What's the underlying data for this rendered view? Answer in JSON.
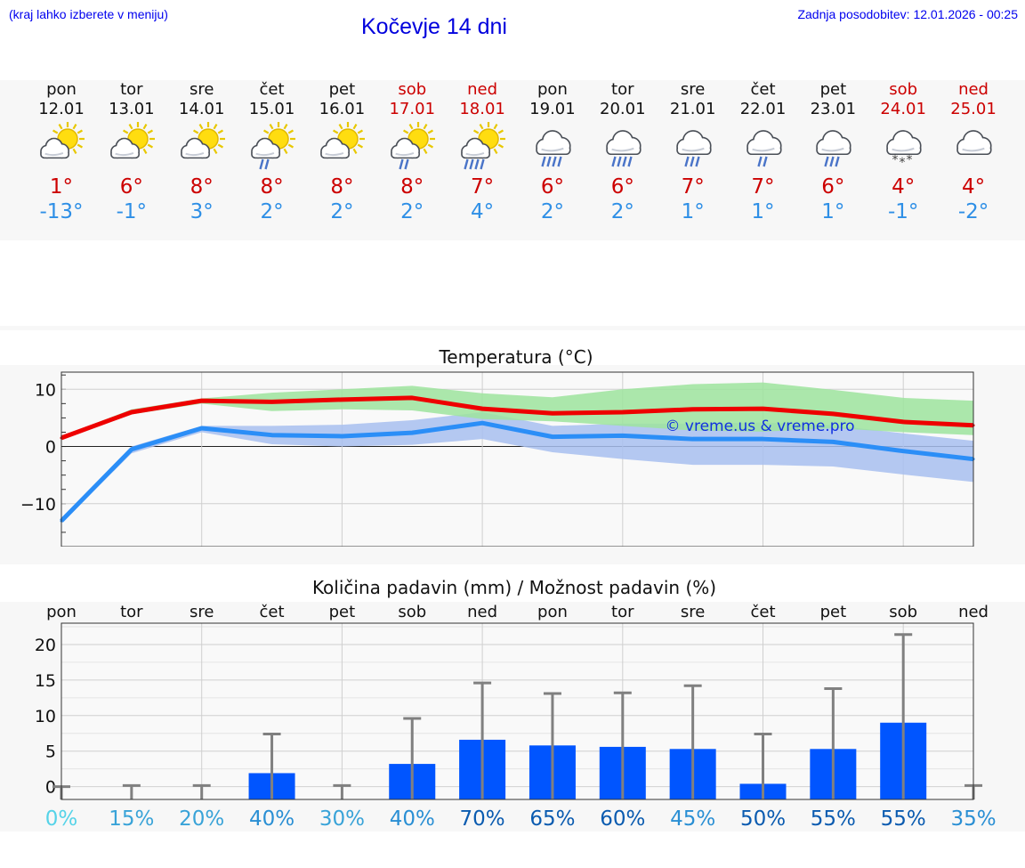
{
  "header": {
    "left_note": "(kraj lahko izberete v meniju)",
    "title": "Kočevje 14 dni",
    "updated": "Zadnja posodobitev: 12.01.2026 - 00:25"
  },
  "days": [
    {
      "name": "pon",
      "date": "12.01",
      "weekend": false,
      "icon": "sun-cloud-icon",
      "tmax": "1°",
      "tmin": "-13°"
    },
    {
      "name": "tor",
      "date": "13.01",
      "weekend": false,
      "icon": "sun-cloud-icon",
      "tmax": "6°",
      "tmin": "-1°"
    },
    {
      "name": "sre",
      "date": "14.01",
      "weekend": false,
      "icon": "sun-cloud-icon",
      "tmax": "8°",
      "tmin": "3°"
    },
    {
      "name": "čet",
      "date": "15.01",
      "weekend": false,
      "icon": "sun-cloud-light-rain-icon",
      "tmax": "8°",
      "tmin": "2°"
    },
    {
      "name": "pet",
      "date": "16.01",
      "weekend": false,
      "icon": "sun-cloud-icon",
      "tmax": "8°",
      "tmin": "2°"
    },
    {
      "name": "sob",
      "date": "17.01",
      "weekend": true,
      "icon": "sun-cloud-light-rain-icon",
      "tmax": "8°",
      "tmin": "2°"
    },
    {
      "name": "ned",
      "date": "18.01",
      "weekend": true,
      "icon": "sun-cloud-rain-icon",
      "tmax": "7°",
      "tmin": "4°"
    },
    {
      "name": "pon",
      "date": "19.01",
      "weekend": false,
      "icon": "cloud-heavy-rain-icon",
      "tmax": "6°",
      "tmin": "2°"
    },
    {
      "name": "tor",
      "date": "20.01",
      "weekend": false,
      "icon": "cloud-heavy-rain-icon",
      "tmax": "6°",
      "tmin": "2°"
    },
    {
      "name": "sre",
      "date": "21.01",
      "weekend": false,
      "icon": "cloud-rain-icon",
      "tmax": "7°",
      "tmin": "1°"
    },
    {
      "name": "čet",
      "date": "22.01",
      "weekend": false,
      "icon": "cloud-light-rain-icon",
      "tmax": "7°",
      "tmin": "1°"
    },
    {
      "name": "pet",
      "date": "23.01",
      "weekend": false,
      "icon": "cloud-rain-icon",
      "tmax": "6°",
      "tmin": "1°"
    },
    {
      "name": "sob",
      "date": "24.01",
      "weekend": true,
      "icon": "cloud-snow-icon",
      "tmax": "4°",
      "tmin": "-1°"
    },
    {
      "name": "ned",
      "date": "25.01",
      "weekend": true,
      "icon": "cloud-icon",
      "tmax": "4°",
      "tmin": "-2°"
    }
  ],
  "colors": {
    "max_line": "#ee0000",
    "min_line": "#2b8ef7",
    "max_band": "#9ee49e",
    "min_band": "#a8c0f0",
    "precip_bar": "#0055ff",
    "error_bar": "#808080",
    "weekend": "#cc0000",
    "prob_low": "#55d0e8",
    "prob_high": "#0a4fb0"
  },
  "watermark": "© vreme.us & vreme.pro",
  "chart_data": [
    {
      "type": "line",
      "title": "Temperatura (°C)",
      "xlabel": "",
      "ylabel": "",
      "categories": [
        "12.01",
        "13.01",
        "14.01",
        "15.01",
        "16.01",
        "17.01",
        "18.01",
        "19.01",
        "20.01",
        "21.01",
        "22.01",
        "23.01",
        "24.01",
        "25.01"
      ],
      "ylim": [
        -17.5,
        13
      ],
      "y_ticks": [
        10,
        0,
        -10
      ],
      "y_tick_labels": [
        "10",
        "0",
        "−10"
      ],
      "series": [
        {
          "name": "Tmax",
          "values": [
            1.5,
            6.0,
            8.0,
            7.8,
            8.2,
            8.5,
            6.6,
            5.8,
            6.0,
            6.5,
            6.6,
            5.7,
            4.3,
            3.7
          ],
          "band_low": [
            1.2,
            5.6,
            7.5,
            6.2,
            6.5,
            6.3,
            4.8,
            4.4,
            3.6,
            2.8,
            2.6,
            3.2,
            2.5,
            2.0
          ],
          "band_high": [
            1.8,
            6.5,
            8.4,
            9.4,
            10.0,
            10.6,
            9.3,
            8.6,
            10.0,
            10.9,
            11.2,
            9.9,
            8.5,
            8.0
          ]
        },
        {
          "name": "Tmin",
          "values": [
            -13.0,
            -0.5,
            3.2,
            2.0,
            1.8,
            2.4,
            4.1,
            1.7,
            1.9,
            1.3,
            1.3,
            0.8,
            -0.8,
            -2.2
          ],
          "band_low": [
            -13.4,
            -1.2,
            2.5,
            0.4,
            0.0,
            0.3,
            1.3,
            -1.0,
            -2.2,
            -3.2,
            -3.2,
            -3.5,
            -4.9,
            -6.2
          ],
          "band_high": [
            -12.6,
            0.0,
            3.6,
            3.6,
            3.8,
            4.6,
            6.0,
            3.6,
            4.0,
            4.0,
            4.2,
            3.7,
            2.3,
            1.0
          ]
        }
      ]
    },
    {
      "type": "bar",
      "title": "Količina padavin (mm) / Možnost padavin (%)",
      "xlabel": "",
      "ylabel": "",
      "day_labels": [
        "pon",
        "tor",
        "sre",
        "čet",
        "pet",
        "sob",
        "ned",
        "pon",
        "tor",
        "sre",
        "čet",
        "pet",
        "sob",
        "ned"
      ],
      "ylim": [
        -1.8,
        23
      ],
      "y_ticks": [
        20,
        15,
        10,
        5,
        0
      ],
      "y_tick_labels": [
        "20",
        "15",
        "10",
        "5",
        "0"
      ],
      "values": [
        0,
        0,
        0,
        1.9,
        0,
        3.2,
        6.6,
        5.8,
        5.6,
        5.3,
        0.4,
        5.3,
        9.0,
        0
      ],
      "error_high": [
        0,
        0.15,
        0.15,
        7.4,
        0.15,
        9.6,
        14.6,
        13.1,
        13.2,
        14.2,
        7.4,
        13.8,
        21.4,
        0.15
      ],
      "probability": [
        "0%",
        "15%",
        "20%",
        "40%",
        "30%",
        "40%",
        "70%",
        "65%",
        "60%",
        "45%",
        "50%",
        "55%",
        "55%",
        "35%"
      ]
    }
  ]
}
